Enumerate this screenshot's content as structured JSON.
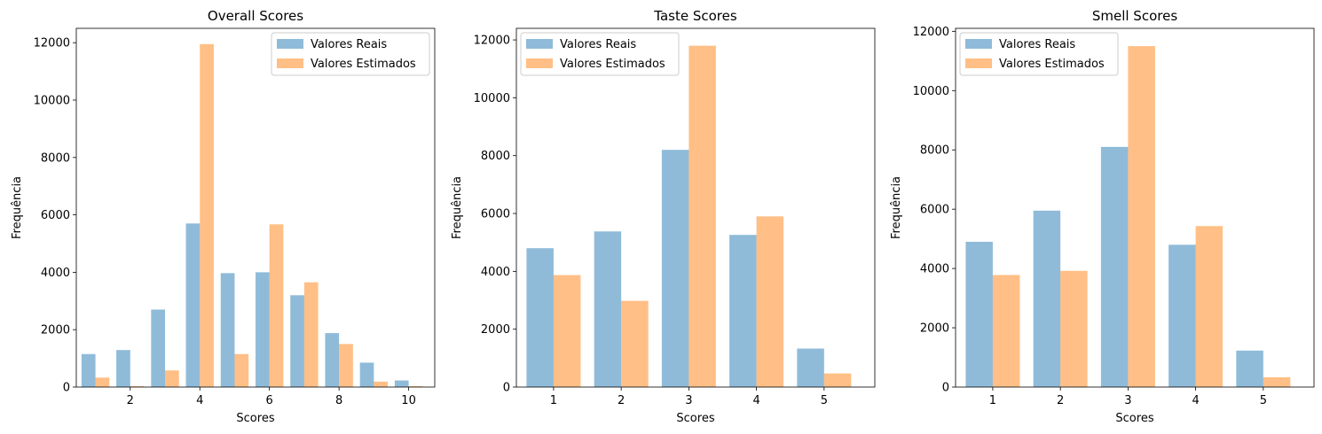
{
  "colors": {
    "real": "#1f77b4",
    "estimated": "#ff7f0e",
    "bar_alpha": 0.5
  },
  "legend_labels": [
    "Valores Reais",
    "Valores Estimados"
  ],
  "chart_data": [
    {
      "type": "bar",
      "title": "Overall Scores",
      "xlabel": "Scores",
      "ylabel": "Frequência",
      "categories": [
        1,
        2,
        3,
        4,
        5,
        6,
        7,
        8,
        9,
        10
      ],
      "xlim": [
        0.45,
        10.75
      ],
      "xticks": [
        2,
        4,
        6,
        8,
        10
      ],
      "ylim": [
        0,
        12500
      ],
      "yticks": [
        0,
        2000,
        4000,
        6000,
        8000,
        10000,
        12000
      ],
      "legend": "top-right",
      "grid": false,
      "series": [
        {
          "name": "Valores Reais",
          "values": [
            1150,
            1290,
            2700,
            5700,
            3970,
            4000,
            3200,
            1880,
            850,
            230
          ]
        },
        {
          "name": "Valores Estimados",
          "values": [
            330,
            30,
            580,
            11950,
            1150,
            5670,
            3650,
            1500,
            190,
            30
          ]
        }
      ]
    },
    {
      "type": "bar",
      "title": "Taste Scores",
      "xlabel": "Scores",
      "ylabel": "Frequência",
      "categories": [
        1,
        2,
        3,
        4,
        5
      ],
      "xlim": [
        0.45,
        5.75
      ],
      "xticks": [
        1,
        2,
        3,
        4,
        5
      ],
      "ylim": [
        0,
        12400
      ],
      "yticks": [
        0,
        2000,
        4000,
        6000,
        8000,
        10000,
        12000
      ],
      "legend": "top-left",
      "grid": false,
      "series": [
        {
          "name": "Valores Reais",
          "values": [
            4800,
            5380,
            8200,
            5260,
            1330
          ]
        },
        {
          "name": "Valores Estimados",
          "values": [
            3870,
            2980,
            11800,
            5900,
            470
          ]
        }
      ]
    },
    {
      "type": "bar",
      "title": "Smell Scores",
      "xlabel": "Scores",
      "ylabel": "Frequência",
      "categories": [
        1,
        2,
        3,
        4,
        5
      ],
      "xlim": [
        0.45,
        5.75
      ],
      "xticks": [
        1,
        2,
        3,
        4,
        5
      ],
      "ylim": [
        0,
        12100
      ],
      "yticks": [
        0,
        2000,
        4000,
        6000,
        8000,
        10000,
        12000
      ],
      "legend": "top-left",
      "grid": false,
      "series": [
        {
          "name": "Valores Reais",
          "values": [
            4900,
            5950,
            8100,
            4800,
            1230
          ]
        },
        {
          "name": "Valores Estimados",
          "values": [
            3780,
            3920,
            11500,
            5430,
            330
          ]
        }
      ]
    }
  ]
}
